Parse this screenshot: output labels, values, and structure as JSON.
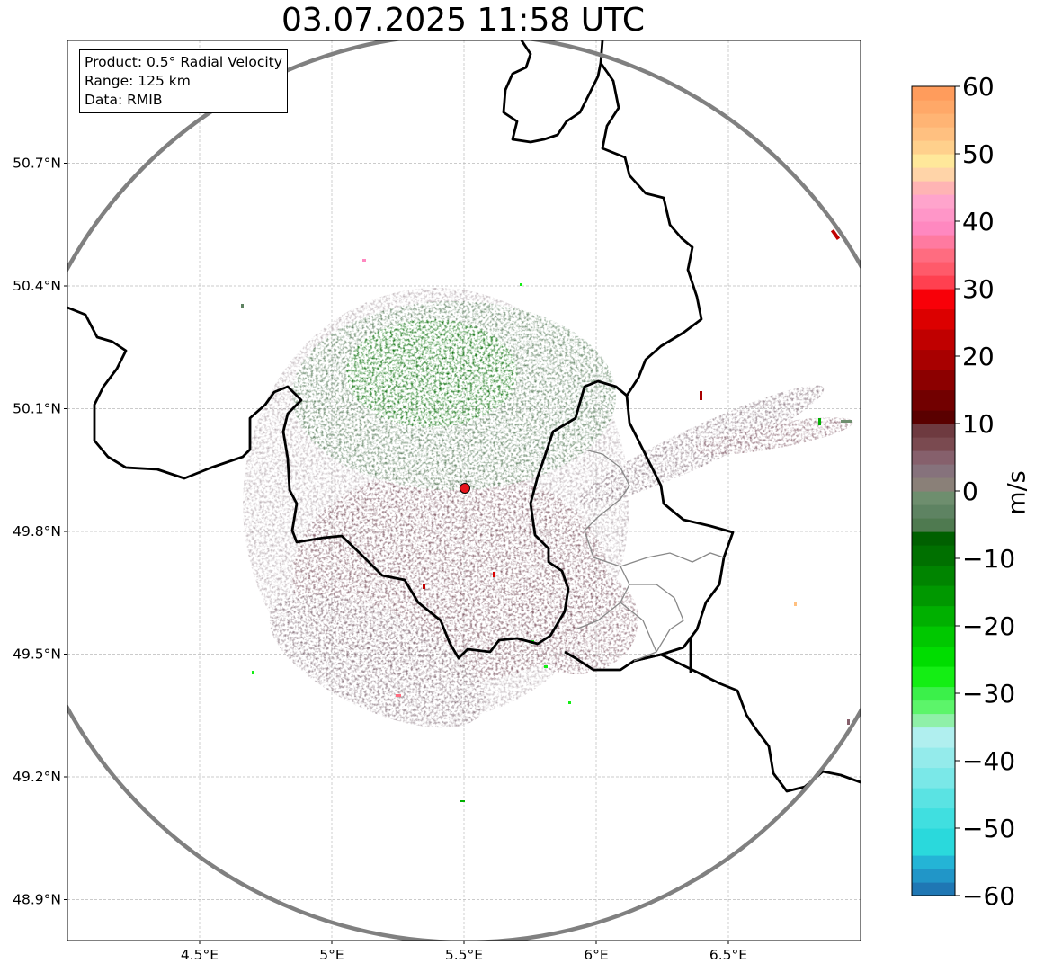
{
  "title": "03.07.2025 11:58 UTC",
  "info": {
    "product": "Product: 0.5° Radial Velocity",
    "range": "Range: 125 km",
    "source": "Data: RMIB"
  },
  "map": {
    "lon_range": [
      4.0,
      7.0
    ],
    "lat_range": [
      48.8,
      51.0
    ],
    "lat_ticks": [
      {
        "value": 50.7,
        "label": "50.7°N"
      },
      {
        "value": 50.4,
        "label": "50.4°N"
      },
      {
        "value": 50.1,
        "label": "50.1°N"
      },
      {
        "value": 49.8,
        "label": "49.8°N"
      },
      {
        "value": 49.5,
        "label": "49.5°N"
      },
      {
        "value": 49.2,
        "label": "49.2°N"
      },
      {
        "value": 48.9,
        "label": "48.9°N"
      }
    ],
    "lon_ticks": [
      {
        "value": 4.5,
        "label": "4.5°E"
      },
      {
        "value": 5.0,
        "label": "5°E"
      },
      {
        "value": 5.5,
        "label": "5.5°E"
      },
      {
        "value": 6.0,
        "label": "6°E"
      },
      {
        "value": 6.5,
        "label": "6.5°E"
      }
    ],
    "radar_site": {
      "lon": 5.505,
      "lat": 49.915
    },
    "range_km": 125,
    "colors": {
      "range_ring": "#808080",
      "border": "#000000",
      "admin_border": "#888888",
      "grid": "#bbbbbb",
      "site_marker": "#e8141c"
    }
  },
  "colorbar": {
    "unit": "m/s",
    "min": -60,
    "max": 60,
    "ticks": [
      {
        "value": 60,
        "label": "60"
      },
      {
        "value": 50,
        "label": "50"
      },
      {
        "value": 40,
        "label": "40"
      },
      {
        "value": 30,
        "label": "30"
      },
      {
        "value": 20,
        "label": "20"
      },
      {
        "value": 10,
        "label": "10"
      },
      {
        "value": 0,
        "label": "0"
      },
      {
        "value": -10,
        "label": "−10"
      },
      {
        "value": -20,
        "label": "−20"
      },
      {
        "value": -30,
        "label": "−30"
      },
      {
        "value": -40,
        "label": "−40"
      },
      {
        "value": -50,
        "label": "−50"
      },
      {
        "value": -60,
        "label": "−60"
      }
    ],
    "stops": [
      {
        "from": -60,
        "to": -58,
        "color": "#1f77b4"
      },
      {
        "from": -58,
        "to": -56,
        "color": "#2196c8"
      },
      {
        "from": -56,
        "to": -54,
        "color": "#24b4d6"
      },
      {
        "from": -54,
        "to": -50,
        "color": "#2ad9dc"
      },
      {
        "from": -50,
        "to": -47,
        "color": "#40dfe0"
      },
      {
        "from": -47,
        "to": -44,
        "color": "#5ae3e3"
      },
      {
        "from": -44,
        "to": -41,
        "color": "#7ae8e8"
      },
      {
        "from": -41,
        "to": -38,
        "color": "#94ebeb"
      },
      {
        "from": -38,
        "to": -35,
        "color": "#b0efef"
      },
      {
        "from": -35,
        "to": -33,
        "color": "#8ff0a8"
      },
      {
        "from": -33,
        "to": -31,
        "color": "#5cf56a"
      },
      {
        "from": -31,
        "to": -29,
        "color": "#3bf04a"
      },
      {
        "from": -29,
        "to": -26,
        "color": "#14ee14"
      },
      {
        "from": -26,
        "to": -23,
        "color": "#00dd00"
      },
      {
        "from": -23,
        "to": -20,
        "color": "#00c800"
      },
      {
        "from": -20,
        "to": -17,
        "color": "#00b000"
      },
      {
        "from": -17,
        "to": -14,
        "color": "#009800"
      },
      {
        "from": -14,
        "to": -11,
        "color": "#008400"
      },
      {
        "from": -11,
        "to": -8,
        "color": "#007000"
      },
      {
        "from": -8,
        "to": -6,
        "color": "#006000"
      },
      {
        "from": -6,
        "to": -4,
        "color": "#4f7a50"
      },
      {
        "from": -4,
        "to": -2,
        "color": "#5e8362"
      },
      {
        "from": -2,
        "to": 0,
        "color": "#6e8e6e"
      },
      {
        "from": 0,
        "to": 2,
        "color": "#8a8078"
      },
      {
        "from": 2,
        "to": 4,
        "color": "#86727c"
      },
      {
        "from": 4,
        "to": 6,
        "color": "#86606c"
      },
      {
        "from": 6,
        "to": 8,
        "color": "#7a4a50"
      },
      {
        "from": 8,
        "to": 10,
        "color": "#6e3a40"
      },
      {
        "from": 10,
        "to": 12,
        "color": "#5a0000"
      },
      {
        "from": 12,
        "to": 15,
        "color": "#720000"
      },
      {
        "from": 15,
        "to": 18,
        "color": "#8c0000"
      },
      {
        "from": 18,
        "to": 21,
        "color": "#a80000"
      },
      {
        "from": 21,
        "to": 24,
        "color": "#c00000"
      },
      {
        "from": 24,
        "to": 27,
        "color": "#dc0000"
      },
      {
        "from": 27,
        "to": 30,
        "color": "#f80008"
      },
      {
        "from": 30,
        "to": 32,
        "color": "#ff4050"
      },
      {
        "from": 32,
        "to": 34,
        "color": "#ff5a6a"
      },
      {
        "from": 34,
        "to": 36,
        "color": "#ff6c80"
      },
      {
        "from": 36,
        "to": 38,
        "color": "#ff7aa0"
      },
      {
        "from": 38,
        "to": 40,
        "color": "#ff88c0"
      },
      {
        "from": 40,
        "to": 42,
        "color": "#ff96c8"
      },
      {
        "from": 42,
        "to": 44,
        "color": "#ffa4cc"
      },
      {
        "from": 44,
        "to": 46,
        "color": "#ffb4b4"
      },
      {
        "from": 46,
        "to": 48,
        "color": "#ffd4a8"
      },
      {
        "from": 48,
        "to": 50,
        "color": "#ffe89a"
      },
      {
        "from": 50,
        "to": 52,
        "color": "#ffd08c"
      },
      {
        "from": 52,
        "to": 54,
        "color": "#ffc080"
      },
      {
        "from": 54,
        "to": 56,
        "color": "#ffb474"
      },
      {
        "from": 56,
        "to": 58,
        "color": "#ffa868"
      },
      {
        "from": 58,
        "to": 60,
        "color": "#ff9c5c"
      }
    ]
  }
}
